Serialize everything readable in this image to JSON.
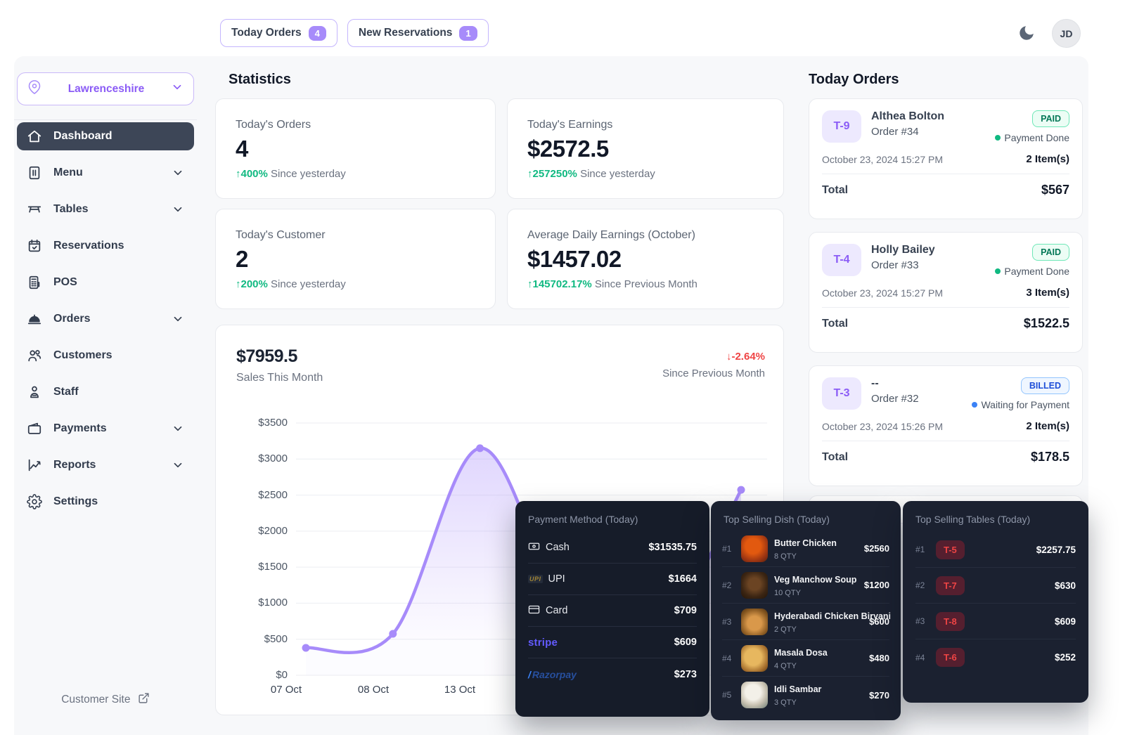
{
  "icons": {
    "arrow_up": "↑",
    "arrow_down": "↓"
  },
  "topbar": {
    "buttons": [
      {
        "label": "Today Orders",
        "count": "4"
      },
      {
        "label": "New Reservations",
        "count": "1"
      }
    ],
    "avatar_initials": "JD"
  },
  "sidebar": {
    "location": "Lawrenceshire",
    "items": [
      {
        "label": "Dashboard"
      },
      {
        "label": "Menu"
      },
      {
        "label": "Tables"
      },
      {
        "label": "Reservations"
      },
      {
        "label": "POS"
      },
      {
        "label": "Orders"
      },
      {
        "label": "Customers"
      },
      {
        "label": "Staff"
      },
      {
        "label": "Payments"
      },
      {
        "label": "Reports"
      },
      {
        "label": "Settings"
      }
    ],
    "customer_site_label": "Customer Site"
  },
  "stats": {
    "title": "Statistics",
    "cards": [
      {
        "label": "Today's Orders",
        "value": "4",
        "delta": "400%",
        "delta_note": "Since yesterday"
      },
      {
        "label": "Today's Earnings",
        "value": "$2572.5",
        "delta": "257250%",
        "delta_note": "Since yesterday"
      },
      {
        "label": "Today's Customer",
        "value": "2",
        "delta": "200%",
        "delta_note": "Since yesterday"
      },
      {
        "label": "Average Daily Earnings (October)",
        "value": "$1457.02",
        "delta": "145702.17%",
        "delta_note": "Since Previous Month"
      }
    ]
  },
  "sales": {
    "total": "$7959.5",
    "subtitle": "Sales This Month",
    "delta": "-2.64%",
    "delta_note": "Since Previous Month"
  },
  "chart_data": {
    "type": "area",
    "title": "Sales This Month",
    "x_labels": [
      "07 Oct",
      "08 Oct",
      "13 Oct",
      "",
      "",
      ""
    ],
    "values": [
      380,
      575,
      3150,
      880,
      400,
      2572.5
    ],
    "y_ticks": [
      "$3500",
      "$3000",
      "$2500",
      "$2000",
      "$1500",
      "$1000",
      "$500",
      "$0"
    ],
    "ylim": [
      0,
      3500
    ],
    "line_color": "#a78bfa",
    "fill_top_color": "rgba(167,139,250,0.30)",
    "grid": true,
    "legend": false
  },
  "today_orders": {
    "title": "Today Orders",
    "orders": [
      {
        "table": "T-9",
        "customer": "Althea Bolton",
        "order_no": "Order #34",
        "status": "PAID",
        "status_note": "Payment Done",
        "datetime": "October 23, 2024 15:27 PM",
        "items": "2 Item(s)",
        "total_label": "Total",
        "total": "$567"
      },
      {
        "table": "T-4",
        "customer": "Holly Bailey",
        "order_no": "Order #33",
        "status": "PAID",
        "status_note": "Payment Done",
        "datetime": "October 23, 2024 15:27 PM",
        "items": "3 Item(s)",
        "total_label": "Total",
        "total": "$1522.5"
      },
      {
        "table": "T-3",
        "customer": "--",
        "order_no": "Order #32",
        "status": "BILLED",
        "status_note": "Waiting for Payment",
        "datetime": "October 23, 2024 15:26 PM",
        "items": "2 Item(s)",
        "total_label": "Total",
        "total": "$178.5"
      }
    ]
  },
  "payment_methods": {
    "title": "Payment Method (Today)",
    "rows": [
      {
        "method": "Cash",
        "amount": "$31535.75"
      },
      {
        "method": "UPI",
        "amount": "$1664"
      },
      {
        "method": "Card",
        "amount": "$709"
      },
      {
        "method": "stripe",
        "amount": "$609"
      },
      {
        "method": "Razorpay",
        "amount": "$273"
      }
    ]
  },
  "top_dishes": {
    "title": "Top Selling Dish (Today)",
    "rows": [
      {
        "rank": "#1",
        "name": "Butter Chicken",
        "qty": "8 QTY",
        "amount": "$2560"
      },
      {
        "rank": "#2",
        "name": "Veg Manchow Soup",
        "qty": "10 QTY",
        "amount": "$1200"
      },
      {
        "rank": "#3",
        "name": "Hyderabadi Chicken Biryani",
        "qty": "2 QTY",
        "amount": "$600"
      },
      {
        "rank": "#4",
        "name": "Masala Dosa",
        "qty": "4 QTY",
        "amount": "$480"
      },
      {
        "rank": "#5",
        "name": "Idli Sambar",
        "qty": "3 QTY",
        "amount": "$270"
      }
    ]
  },
  "top_tables": {
    "title": "Top Selling Tables (Today)",
    "rows": [
      {
        "rank": "#1",
        "table": "T-5",
        "amount": "$2257.75"
      },
      {
        "rank": "#2",
        "table": "T-7",
        "amount": "$630"
      },
      {
        "rank": "#3",
        "table": "T-8",
        "amount": "$609"
      },
      {
        "rank": "#4",
        "table": "T-6",
        "amount": "$252"
      }
    ]
  },
  "colors": {
    "accent_purple": "#8b5cf6",
    "badge_purple": "#a78bfa",
    "active_nav_bg": "#3d4657",
    "green": "#10b981",
    "red": "#ef4444",
    "paid_text": "#047857",
    "billed_text": "#1d4ed8",
    "dark_panel_bg": "#1a202e",
    "table_badge_red": "#ef4444",
    "stripe_brand": "#635bff"
  }
}
